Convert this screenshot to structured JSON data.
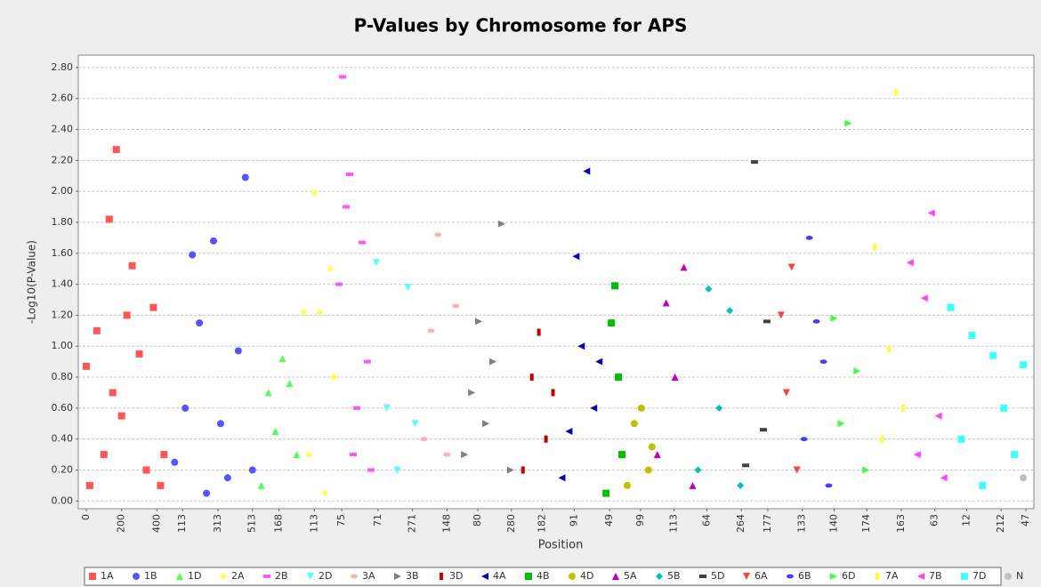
{
  "chart_data": {
    "type": "scatter",
    "title": "P-Values by Chromosome for APS",
    "x_label": "Position",
    "y_label": "-Log10(P-Value)",
    "xlim": [
      -45,
      5360
    ],
    "ylim": [
      -0.05,
      2.88
    ],
    "grid": true,
    "legend": "bottom",
    "xticks": [
      {
        "value": 0,
        "label": "0"
      },
      {
        "value": 200,
        "label": "200"
      },
      {
        "value": 400,
        "label": "400"
      },
      {
        "value": 545,
        "label": "113"
      },
      {
        "value": 745,
        "label": "313"
      },
      {
        "value": 940,
        "label": "513"
      },
      {
        "value": 1090,
        "label": "168"
      },
      {
        "value": 1290,
        "label": "113"
      },
      {
        "value": 1445,
        "label": "75"
      },
      {
        "value": 1650,
        "label": "71"
      },
      {
        "value": 1845,
        "label": "271"
      },
      {
        "value": 2040,
        "label": "148"
      },
      {
        "value": 2215,
        "label": "80"
      },
      {
        "value": 2405,
        "label": "280"
      },
      {
        "value": 2580,
        "label": "182"
      },
      {
        "value": 2760,
        "label": "91"
      },
      {
        "value": 2960,
        "label": "49"
      },
      {
        "value": 3135,
        "label": "99"
      },
      {
        "value": 3325,
        "label": "113"
      },
      {
        "value": 3510,
        "label": "64"
      },
      {
        "value": 3705,
        "label": "264"
      },
      {
        "value": 3855,
        "label": "177"
      },
      {
        "value": 4050,
        "label": "133"
      },
      {
        "value": 4230,
        "label": "140"
      },
      {
        "value": 4415,
        "label": "174"
      },
      {
        "value": 4610,
        "label": "163"
      },
      {
        "value": 4800,
        "label": "63"
      },
      {
        "value": 4980,
        "label": "12"
      },
      {
        "value": 5175,
        "label": "212"
      },
      {
        "value": 5315,
        "label": "47"
      }
    ],
    "yticks": [
      {
        "value": 0,
        "label": "0.00"
      },
      {
        "value": 0.2,
        "label": "0.20"
      },
      {
        "value": 0.4,
        "label": "0.40"
      },
      {
        "value": 0.6,
        "label": "0.60"
      },
      {
        "value": 0.8,
        "label": "0.80"
      },
      {
        "value": 1.0,
        "label": "1.00"
      },
      {
        "value": 1.2,
        "label": "1.20"
      },
      {
        "value": 1.4,
        "label": "1.40"
      },
      {
        "value": 1.6,
        "label": "1.60"
      },
      {
        "value": 1.8,
        "label": "1.80"
      },
      {
        "value": 2.0,
        "label": "2.00"
      },
      {
        "value": 2.2,
        "label": "2.20"
      },
      {
        "value": 2.4,
        "label": "2.40"
      },
      {
        "value": 2.6,
        "label": "2.60"
      },
      {
        "value": 2.8,
        "label": "2.80"
      }
    ],
    "series": [
      {
        "name": "1A",
        "color": "#ff5555",
        "marker": "square",
        "x": [
          0,
          20,
          60,
          100,
          130,
          150,
          170,
          200,
          230,
          260,
          300,
          340,
          380,
          420,
          440
        ],
        "values": [
          0.87,
          0.1,
          1.1,
          0.3,
          1.82,
          0.7,
          2.27,
          0.55,
          1.2,
          1.52,
          0.95,
          0.2,
          1.25,
          0.1,
          0.3
        ]
      },
      {
        "name": "1B",
        "color": "#5555ff",
        "marker": "circle",
        "x": [
          500,
          560,
          600,
          640,
          680,
          720,
          760,
          800,
          860,
          900,
          940
        ],
        "values": [
          0.25,
          0.6,
          1.59,
          1.15,
          0.05,
          1.68,
          0.5,
          0.15,
          0.97,
          2.09,
          0.2
        ]
      },
      {
        "name": "1D",
        "color": "#55ff55",
        "marker": "triangle-up",
        "x": [
          990,
          1030,
          1070,
          1110,
          1150,
          1190
        ],
        "values": [
          0.1,
          0.7,
          0.45,
          0.92,
          0.76,
          0.3
        ]
      },
      {
        "name": "2A",
        "color": "#ffff55",
        "marker": "diamond",
        "x": [
          1230,
          1260,
          1290,
          1320,
          1350,
          1380,
          1400
        ],
        "values": [
          1.22,
          0.3,
          1.99,
          1.22,
          0.05,
          1.5,
          0.8
        ]
      },
      {
        "name": "2B",
        "color": "#ff55ff",
        "marker": "hrect",
        "x": [
          1430,
          1450,
          1470,
          1490,
          1510,
          1530,
          1560,
          1590,
          1610
        ],
        "values": [
          1.4,
          2.74,
          1.9,
          2.11,
          0.3,
          0.6,
          1.67,
          0.9,
          0.2
        ]
      },
      {
        "name": "2D",
        "color": "#55ffff",
        "marker": "triangle-down",
        "x": [
          1640,
          1700,
          1760,
          1820,
          1860
        ],
        "values": [
          1.54,
          0.6,
          0.2,
          1.38,
          0.5
        ]
      },
      {
        "name": "3A",
        "color": "#ffafaf",
        "marker": "ellipse",
        "x": [
          1910,
          1950,
          1990,
          2040,
          2090
        ],
        "values": [
          0.4,
          1.1,
          1.72,
          0.3,
          1.26
        ]
      },
      {
        "name": "3B",
        "color": "#808080",
        "marker": "triangle-right",
        "x": [
          2140,
          2180,
          2220,
          2260,
          2300,
          2350,
          2400
        ],
        "values": [
          0.3,
          0.7,
          1.16,
          0.5,
          0.9,
          1.79,
          0.2
        ]
      },
      {
        "name": "3D",
        "color": "#c00000",
        "marker": "vrect",
        "x": [
          2470,
          2520,
          2560,
          2600,
          2640
        ],
        "values": [
          0.2,
          0.8,
          1.09,
          0.4,
          0.7
        ]
      },
      {
        "name": "4A",
        "color": "#0000c0",
        "marker": "triangle-left",
        "x": [
          2690,
          2730,
          2770,
          2800,
          2830,
          2870,
          2900
        ],
        "values": [
          0.15,
          0.45,
          1.58,
          1.0,
          2.13,
          0.6,
          0.9
        ]
      },
      {
        "name": "4B",
        "color": "#00c000",
        "marker": "square",
        "x": [
          2940,
          2970,
          2990,
          3010,
          3030
        ],
        "values": [
          0.05,
          1.15,
          1.39,
          0.8,
          0.3
        ]
      },
      {
        "name": "4D",
        "color": "#c0c000",
        "marker": "circle",
        "x": [
          3060,
          3100,
          3140,
          3180,
          3200
        ],
        "values": [
          0.1,
          0.5,
          0.6,
          0.2,
          0.35
        ]
      },
      {
        "name": "5A",
        "color": "#c000c0",
        "marker": "triangle-up",
        "x": [
          3230,
          3280,
          3330,
          3380,
          3430
        ],
        "values": [
          0.3,
          1.28,
          0.8,
          1.51,
          0.1
        ]
      },
      {
        "name": "5B",
        "color": "#00c0c0",
        "marker": "diamond",
        "x": [
          3460,
          3520,
          3580,
          3640,
          3700
        ],
        "values": [
          0.2,
          1.37,
          0.6,
          1.23,
          0.1
        ]
      },
      {
        "name": "5D",
        "color": "#404040",
        "marker": "hrect",
        "x": [
          3730,
          3780,
          3830,
          3850
        ],
        "values": [
          0.23,
          2.19,
          0.46,
          1.16
        ]
      },
      {
        "name": "6A",
        "color": "#ff4040",
        "marker": "triangle-down",
        "x": [
          3930,
          3960,
          3990,
          4020
        ],
        "values": [
          1.2,
          0.7,
          1.51,
          0.2
        ]
      },
      {
        "name": "6B",
        "color": "#4040ff",
        "marker": "ellipse",
        "x": [
          4060,
          4090,
          4130,
          4170,
          4200
        ],
        "values": [
          0.4,
          1.7,
          1.16,
          0.9,
          0.1
        ]
      },
      {
        "name": "6D",
        "color": "#40ff40",
        "marker": "triangle-right",
        "x": [
          4230,
          4270,
          4310,
          4360,
          4410
        ],
        "values": [
          1.18,
          0.5,
          2.44,
          0.84,
          0.2
        ]
      },
      {
        "name": "7A",
        "color": "#ffff40",
        "marker": "vrect",
        "x": [
          4460,
          4500,
          4540,
          4580,
          4620
        ],
        "values": [
          1.64,
          0.4,
          0.98,
          2.64,
          0.6
        ]
      },
      {
        "name": "7B",
        "color": "#ff40ff",
        "marker": "triangle-left",
        "x": [
          4660,
          4700,
          4740,
          4780,
          4820,
          4850
        ],
        "values": [
          1.54,
          0.3,
          1.31,
          1.86,
          0.55,
          0.15
        ]
      },
      {
        "name": "7D",
        "color": "#40ffff",
        "marker": "square",
        "x": [
          4890,
          4950,
          5010,
          5070,
          5130,
          5190,
          5250,
          5300
        ],
        "values": [
          1.25,
          0.4,
          1.07,
          0.1,
          0.94,
          0.6,
          0.3,
          0.88
        ]
      },
      {
        "name": "N",
        "color": "#c0c0c0",
        "marker": "circle",
        "x": [
          5300
        ],
        "values": [
          0.15
        ]
      }
    ]
  }
}
